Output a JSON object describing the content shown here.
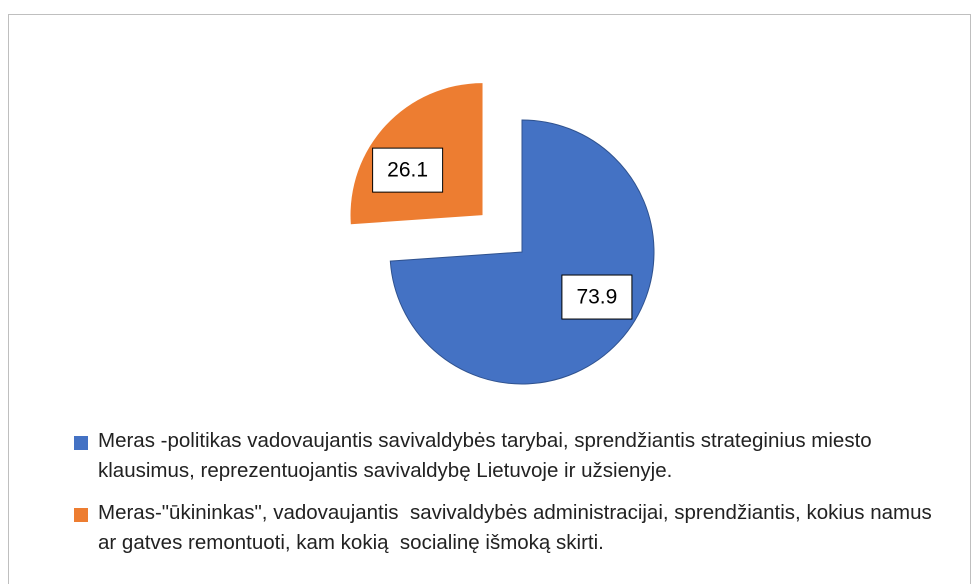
{
  "chart_data": {
    "type": "pie",
    "categories": [
      "Meras -politikas vadovaujantis savivaldybės tarybai, sprendžiantis strateginius miesto klausimus, reprezentuojantis savivaldybę Lietuvoje ir užsienyje.",
      "Meras-\"ūkininkas\", vadovaujantis  savivaldybės administracijai, sprendžiantis, kokius namus ar gatves remontuoti, kam kokią  socialinę išmoką skirti."
    ],
    "values": [
      73.9,
      26.1
    ],
    "colors": [
      "#4472c4",
      "#ed7d31"
    ],
    "legend": "bottom"
  }
}
